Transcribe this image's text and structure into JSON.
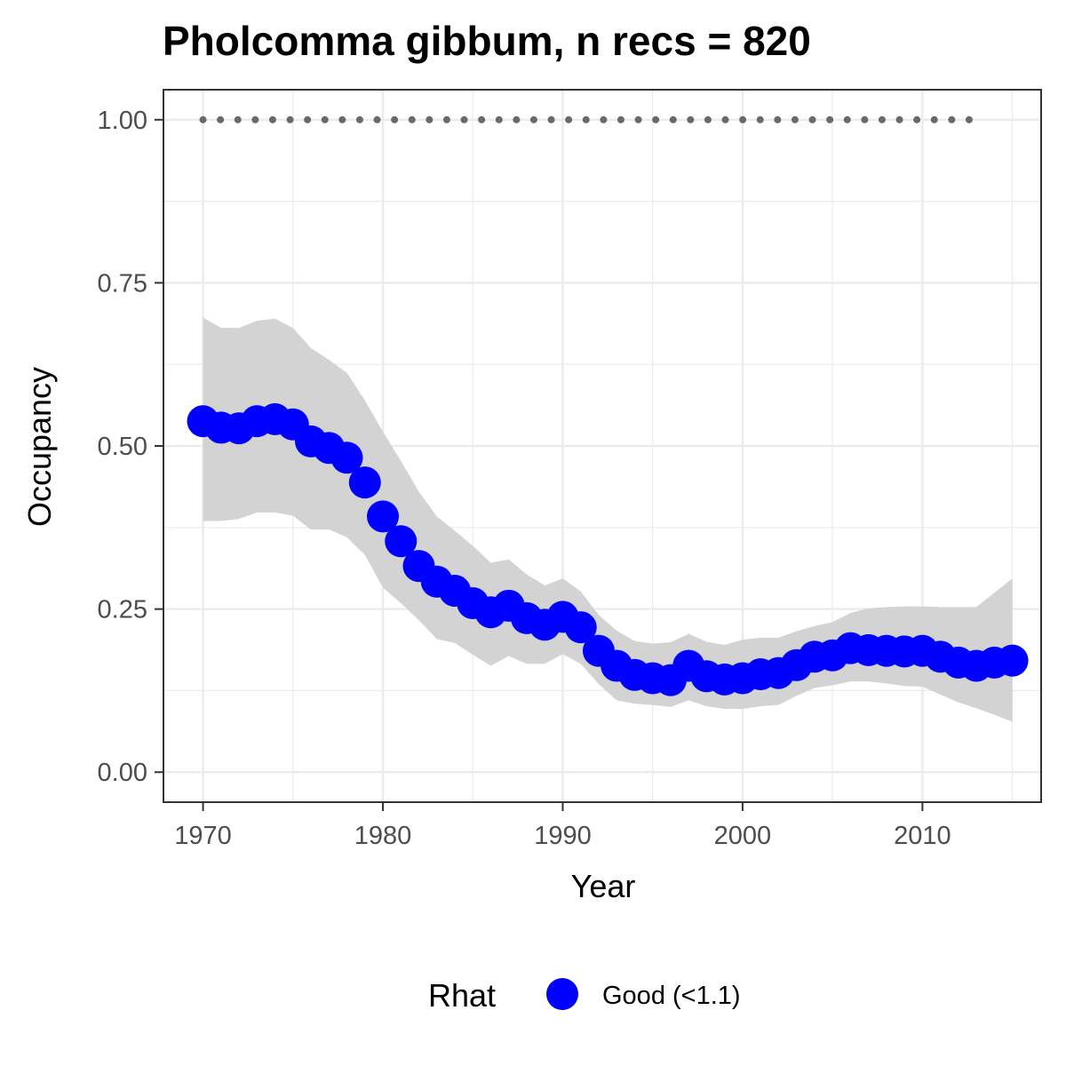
{
  "chart_data": {
    "type": "line",
    "title": "Pholcomma gibbum, n recs = 820",
    "xlabel": "Year",
    "ylabel": "Occupancy",
    "xlim": [
      1967.8,
      2016.6
    ],
    "ylim": [
      -0.046,
      1.046
    ],
    "x_ticks": [
      1970,
      1980,
      1990,
      2000,
      2010
    ],
    "x_tick_labels": [
      "1970",
      "1980",
      "1990",
      "2000",
      "2010"
    ],
    "y_ticks": [
      0,
      0.25,
      0.5,
      0.75,
      1.0
    ],
    "y_tick_labels": [
      "0.00",
      "0.25",
      "0.50",
      "0.75",
      "1.00"
    ],
    "grid": true,
    "legend": {
      "title": "Rhat",
      "position": "bottom",
      "entries": [
        {
          "label": "Good (<1.1)",
          "color": "#0000ff"
        }
      ]
    },
    "colors": {
      "points": "#0000ff",
      "ribbon": "#d3d3d3",
      "dotted": "#696969",
      "panel_border": "#333333",
      "grid": "#ebebeb"
    },
    "x": [
      1970,
      1971,
      1972,
      1973,
      1974,
      1975,
      1976,
      1977,
      1978,
      1979,
      1980,
      1981,
      1982,
      1983,
      1984,
      1985,
      1986,
      1987,
      1988,
      1989,
      1990,
      1991,
      1992,
      1993,
      1994,
      1995,
      1996,
      1997,
      1998,
      1999,
      2000,
      2001,
      2002,
      2003,
      2004,
      2005,
      2006,
      2007,
      2008,
      2009,
      2010,
      2011,
      2012,
      2013,
      2014,
      2015
    ],
    "series": [
      {
        "type": "points",
        "values": [
          0.538,
          0.528,
          0.527,
          0.538,
          0.541,
          0.533,
          0.507,
          0.497,
          0.482,
          0.444,
          0.392,
          0.354,
          0.316,
          0.292,
          0.278,
          0.259,
          0.245,
          0.255,
          0.236,
          0.226,
          0.238,
          0.222,
          0.186,
          0.163,
          0.149,
          0.144,
          0.141,
          0.163,
          0.147,
          0.142,
          0.144,
          0.15,
          0.152,
          0.164,
          0.177,
          0.179,
          0.19,
          0.187,
          0.186,
          0.185,
          0.186,
          0.177,
          0.168,
          0.163,
          0.168,
          0.171
        ]
      },
      {
        "type": "ribbon",
        "lower": [
          0.385,
          0.385,
          0.388,
          0.398,
          0.398,
          0.393,
          0.372,
          0.372,
          0.36,
          0.333,
          0.283,
          0.259,
          0.233,
          0.204,
          0.198,
          0.18,
          0.163,
          0.178,
          0.166,
          0.166,
          0.181,
          0.166,
          0.135,
          0.11,
          0.105,
          0.103,
          0.1,
          0.11,
          0.101,
          0.097,
          0.097,
          0.101,
          0.103,
          0.117,
          0.129,
          0.133,
          0.139,
          0.139,
          0.136,
          0.132,
          0.131,
          0.119,
          0.107,
          0.098,
          0.088,
          0.077
        ],
        "upper": [
          0.697,
          0.681,
          0.681,
          0.692,
          0.695,
          0.681,
          0.65,
          0.632,
          0.612,
          0.57,
          0.522,
          0.477,
          0.43,
          0.392,
          0.37,
          0.347,
          0.321,
          0.326,
          0.303,
          0.286,
          0.297,
          0.277,
          0.241,
          0.217,
          0.201,
          0.197,
          0.199,
          0.212,
          0.2,
          0.195,
          0.203,
          0.206,
          0.206,
          0.216,
          0.224,
          0.23,
          0.244,
          0.251,
          0.253,
          0.254,
          0.254,
          0.253,
          0.253,
          0.253,
          0.275,
          0.297
        ]
      },
      {
        "type": "dotted",
        "x": [
          1970,
          2013
        ],
        "values": [
          1.0,
          1.0
        ]
      }
    ]
  }
}
